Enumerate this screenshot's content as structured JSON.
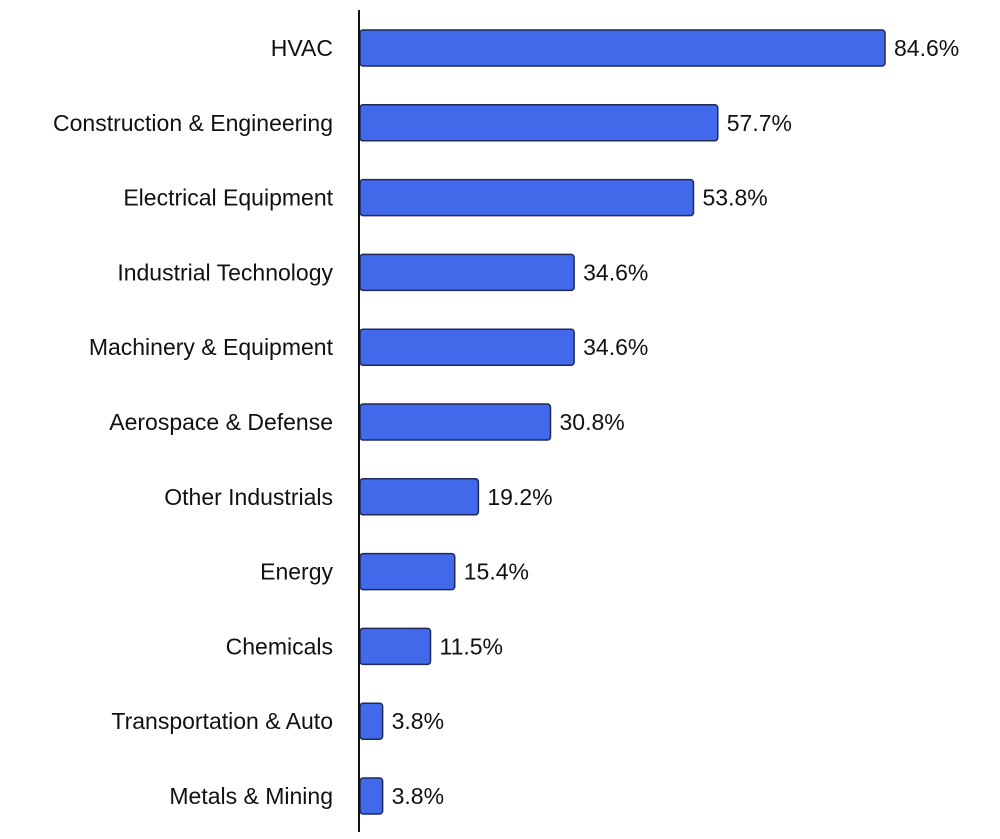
{
  "chart_data": {
    "type": "bar",
    "orientation": "horizontal",
    "categories": [
      "HVAC",
      "Construction & Engineering",
      "Electrical Equipment",
      "Industrial Technology",
      "Machinery & Equipment",
      "Aerospace & Defense",
      "Other Industrials",
      "Energy",
      "Chemicals",
      "Transportation & Auto",
      "Metals & Mining"
    ],
    "values": [
      84.6,
      57.7,
      53.8,
      34.6,
      34.6,
      30.8,
      19.2,
      15.4,
      11.5,
      3.8,
      3.8
    ],
    "data_labels": [
      "84.6%",
      "57.7%",
      "53.8%",
      "34.6%",
      "34.6%",
      "30.8%",
      "19.2%",
      "15.4%",
      "11.5%",
      "3.8%",
      "3.8%"
    ],
    "title": "",
    "xlabel": "",
    "ylabel": "",
    "xlim": [
      0,
      84.6
    ],
    "grid": false,
    "legend": "none",
    "bar_color": "#4169E9",
    "bar_edge_color": "#1F2A5A"
  }
}
